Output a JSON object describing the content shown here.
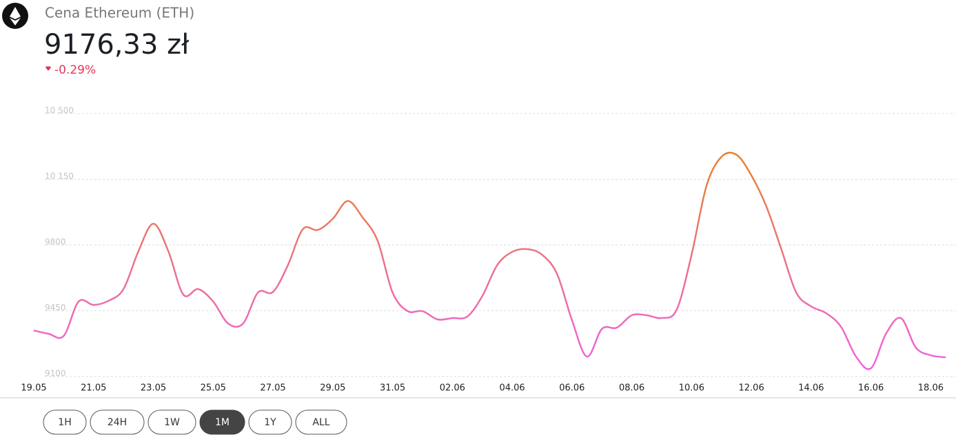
{
  "header": {
    "title": "Cena Ethereum (ETH)",
    "price": "9176,33 zł",
    "change": "-0.29%"
  },
  "chart_data": {
    "type": "line",
    "categories": [
      "19.05",
      null,
      null,
      null,
      "21.05",
      null,
      null,
      null,
      "23.05",
      null,
      null,
      null,
      "25.05",
      null,
      null,
      null,
      "27.05",
      null,
      null,
      null,
      "29.05",
      null,
      null,
      null,
      "31.05",
      null,
      null,
      null,
      "02.06",
      null,
      null,
      null,
      "04.06",
      null,
      null,
      null,
      "06.06",
      null,
      null,
      null,
      "08.06",
      null,
      null,
      null,
      "10.06",
      null,
      null,
      null,
      "12.06",
      null,
      null,
      null,
      "14.06",
      null,
      null,
      null,
      "16.06",
      null,
      null,
      null,
      "18.06",
      null
    ],
    "values": [
      9338,
      9320,
      9309,
      9492,
      9474,
      9496,
      9558,
      9760,
      9906,
      9760,
      9529,
      9558,
      9492,
      9375,
      9375,
      9540,
      9543,
      9686,
      9877,
      9873,
      9932,
      10027,
      9939,
      9815,
      9540,
      9441,
      9441,
      9397,
      9404,
      9412,
      9521,
      9686,
      9756,
      9771,
      9741,
      9639,
      9393,
      9199,
      9346,
      9353,
      9419,
      9419,
      9404,
      9448,
      9741,
      10108,
      10262,
      10273,
      10163,
      9998,
      9771,
      9540,
      9466,
      9430,
      9357,
      9199,
      9137,
      9320,
      9404,
      9247,
      9206,
      9195
    ],
    "gradient": [
      "#f062e6",
      "#e8822a"
    ],
    "ylim": [
      8980,
      10580
    ],
    "yticks": [
      {
        "value": 9100,
        "label": "9100"
      },
      {
        "value": 9450,
        "label": "9450"
      },
      {
        "value": 9800,
        "label": "9800"
      },
      {
        "value": 10150,
        "label": "10 150"
      },
      {
        "value": 10500,
        "label": "10 500"
      }
    ],
    "grid": true
  },
  "range_buttons": [
    "1H",
    "24H",
    "1W",
    "1M",
    "1Y",
    "ALL"
  ],
  "active_range": "1M"
}
